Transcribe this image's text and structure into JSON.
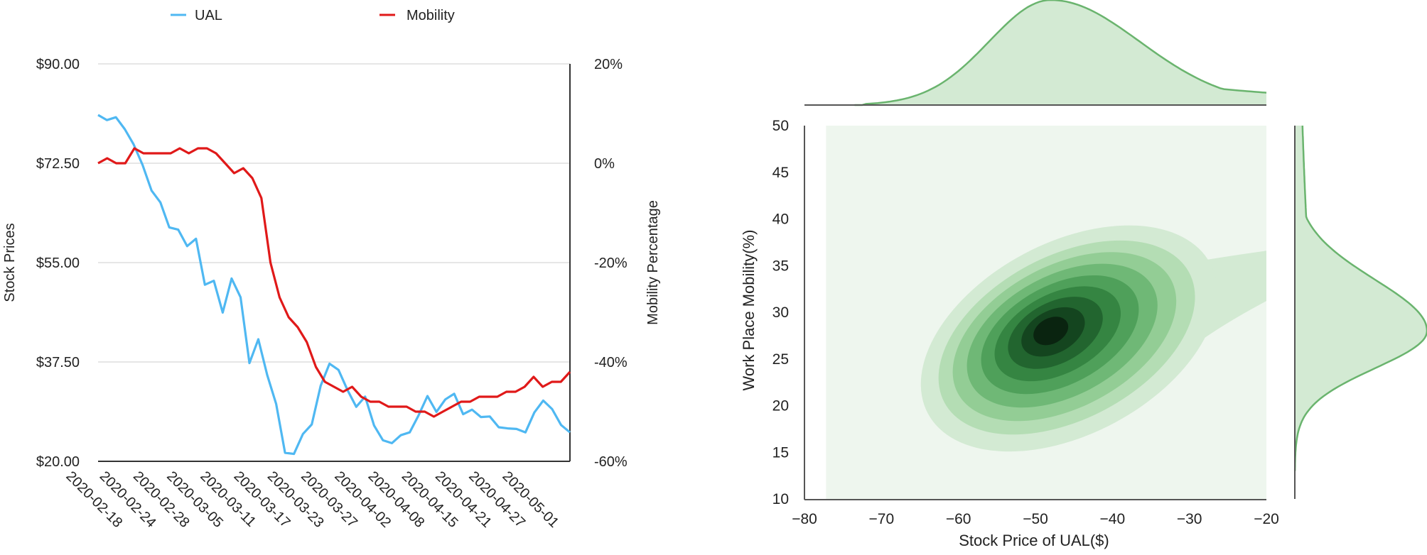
{
  "chart_data": [
    {
      "type": "line",
      "dual_axis": true,
      "legend_position": "top",
      "grid": true,
      "ylabel": "Stock Prices",
      "y2label": "Mobility Percentage",
      "ylim": [
        20,
        90
      ],
      "y2lim": [
        -60,
        20
      ],
      "yticks": [
        "$20.00",
        "$37.50",
        "$55.00",
        "$72.50",
        "$90.00"
      ],
      "y2ticks": [
        "-60%",
        "-40%",
        "-20%",
        "0%",
        "20%"
      ],
      "xticks": [
        "2020-02-18",
        "2020-02-24",
        "2020-02-28",
        "2020-03-05",
        "2020-03-11",
        "2020-03-17",
        "2020-03-23",
        "2020-03-27",
        "2020-04-02",
        "2020-04-08",
        "2020-04-15",
        "2020-04-21",
        "2020-04-27",
        "2020-05-01"
      ],
      "series": [
        {
          "name": "UAL",
          "axis": "left",
          "color": "#4fb8f2",
          "values": [
            81,
            80.1,
            80.6,
            78.5,
            75.8,
            72.2,
            67.7,
            65.6,
            61.2,
            60.8,
            57.9,
            59.2,
            51.1,
            51.8,
            46.2,
            52.2,
            48.9,
            37.3,
            41.5,
            35.2,
            30.1,
            21.5,
            21.3,
            24.8,
            26.5,
            33.3,
            37.2,
            36.1,
            32.6,
            29.6,
            31.4,
            26.3,
            23.7,
            23.2,
            24.6,
            25.1,
            28.1,
            31.5,
            28.7,
            30.9,
            31.9,
            28.3,
            29.1,
            27.8,
            27.9,
            26,
            25.8,
            25.7,
            25.1,
            28.6,
            30.7,
            29.2,
            26.4,
            25.1
          ]
        },
        {
          "name": "Mobility",
          "axis": "right",
          "color": "#e01919",
          "values": [
            0,
            1,
            0,
            0,
            3,
            2,
            2,
            2,
            2,
            3,
            2,
            3,
            3,
            2,
            0,
            -2,
            -1,
            -3,
            -7,
            -20,
            -27,
            -31,
            -33,
            -36,
            -41,
            -44,
            -45,
            -46,
            -45,
            -47,
            -48,
            -48,
            -49,
            -49,
            -49,
            -50,
            -50,
            -51,
            -50,
            -49,
            -48,
            -48,
            -47,
            -47,
            -47,
            -46,
            -46,
            -45,
            -43,
            -45,
            -44,
            -44,
            -42
          ]
        }
      ]
    },
    {
      "type": "kde-joint",
      "xlabel": "Stock Price of UAL($)",
      "ylabel": "Work Place Mobility(%)",
      "xlim": [
        -80,
        -20
      ],
      "ylim": [
        10,
        50
      ],
      "xticks": [
        "−80",
        "−70",
        "−60",
        "−50",
        "−40",
        "−30",
        "−20"
      ],
      "yticks": [
        "10",
        "15",
        "20",
        "25",
        "30",
        "35",
        "40",
        "45",
        "50"
      ],
      "density_peak": {
        "x": -48,
        "y": 28
      },
      "colors": {
        "levels": [
          "#eef6ee",
          "#d3ead3",
          "#b4ddb4",
          "#93cd95",
          "#6fb876",
          "#4fa05a",
          "#358542",
          "#22652f",
          "#14451f",
          "#0a2410"
        ],
        "marginal_line": "#6ab46e",
        "marginal_fill": "#d3ead3",
        "axis": "#555555"
      }
    }
  ]
}
